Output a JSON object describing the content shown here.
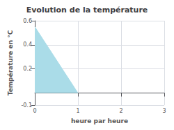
{
  "chart_data": {
    "type": "area",
    "title": "Evolution de la température",
    "xlabel": "heure par heure",
    "ylabel": "Température en °C",
    "x": [
      0,
      1
    ],
    "values": [
      0.55,
      0.0
    ],
    "color": "#aadce8",
    "xlim": [
      0,
      3
    ],
    "ylim": [
      -0.1,
      0.6
    ],
    "xticks": [
      0,
      1,
      2,
      3
    ],
    "yticks": [
      -0.1,
      0.2,
      0.4,
      0.6
    ],
    "grid": true
  }
}
